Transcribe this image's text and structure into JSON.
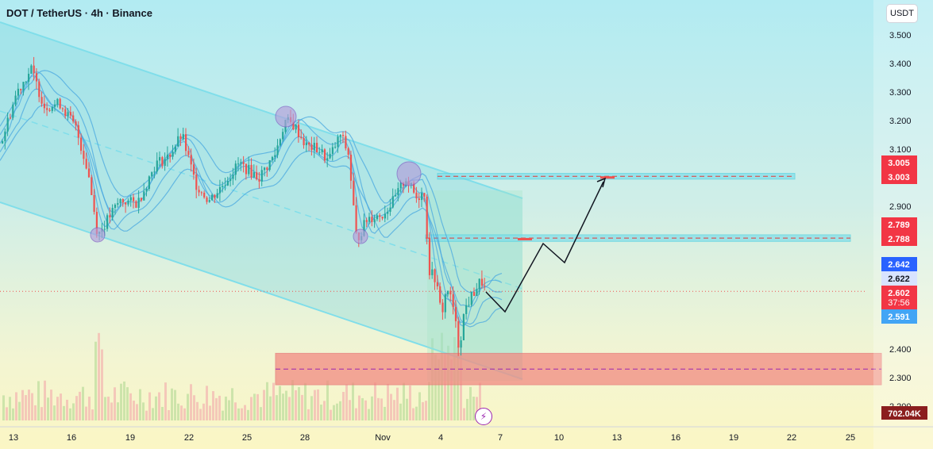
{
  "header": {
    "title": "DOT / TetherUS · 4h · Binance",
    "currency_button": "USDT"
  },
  "colors": {
    "up": "#26a69a",
    "down": "#ef5350",
    "channel": "#80deea",
    "bands": "#4aa8e0",
    "zone_blue": "#4dd0e1",
    "zone_red": "#ef5350",
    "axis_text": "#131722"
  },
  "chart_data": {
    "type": "candlestick",
    "symbol": "DOT / TetherUS",
    "timeframe": "4h",
    "exchange": "Binance",
    "ylim": [
      2.2,
      3.55
    ],
    "y_ticks": [
      "3.500",
      "3.400",
      "3.300",
      "3.200",
      "3.100",
      "2.900",
      "2.400",
      "2.300",
      "2.200"
    ],
    "x_ticks": [
      "13",
      "16",
      "19",
      "22",
      "25",
      "28",
      "Nov",
      "4",
      "7",
      "10",
      "13",
      "16",
      "19",
      "22",
      "25"
    ],
    "price_labels": [
      {
        "value": "3.005",
        "price": 3.005,
        "style": "sell"
      },
      {
        "value": "3.003",
        "price": 3.003,
        "style": "sell"
      },
      {
        "value": "2.789",
        "price": 2.789,
        "style": "sell"
      },
      {
        "value": "2.788",
        "price": 2.788,
        "style": "sell"
      },
      {
        "value": "2.642",
        "price": 2.642,
        "style": "blue"
      },
      {
        "value": "2.622",
        "price": 2.622,
        "style": "light"
      },
      {
        "value": "2.602",
        "price": 2.602,
        "style": "current",
        "sub": "37:56"
      },
      {
        "value": "2.591",
        "price": 2.591,
        "style": "lightblue"
      }
    ],
    "volume_label": "702.04K",
    "zones": [
      {
        "kind": "resistance",
        "from": 2.995,
        "to": 3.015
      },
      {
        "kind": "resistance",
        "from": 2.777,
        "to": 2.8
      },
      {
        "kind": "support",
        "from": 2.275,
        "to": 2.385
      }
    ],
    "projection": [
      2.602,
      2.55,
      2.78,
      2.7,
      2.99
    ]
  }
}
